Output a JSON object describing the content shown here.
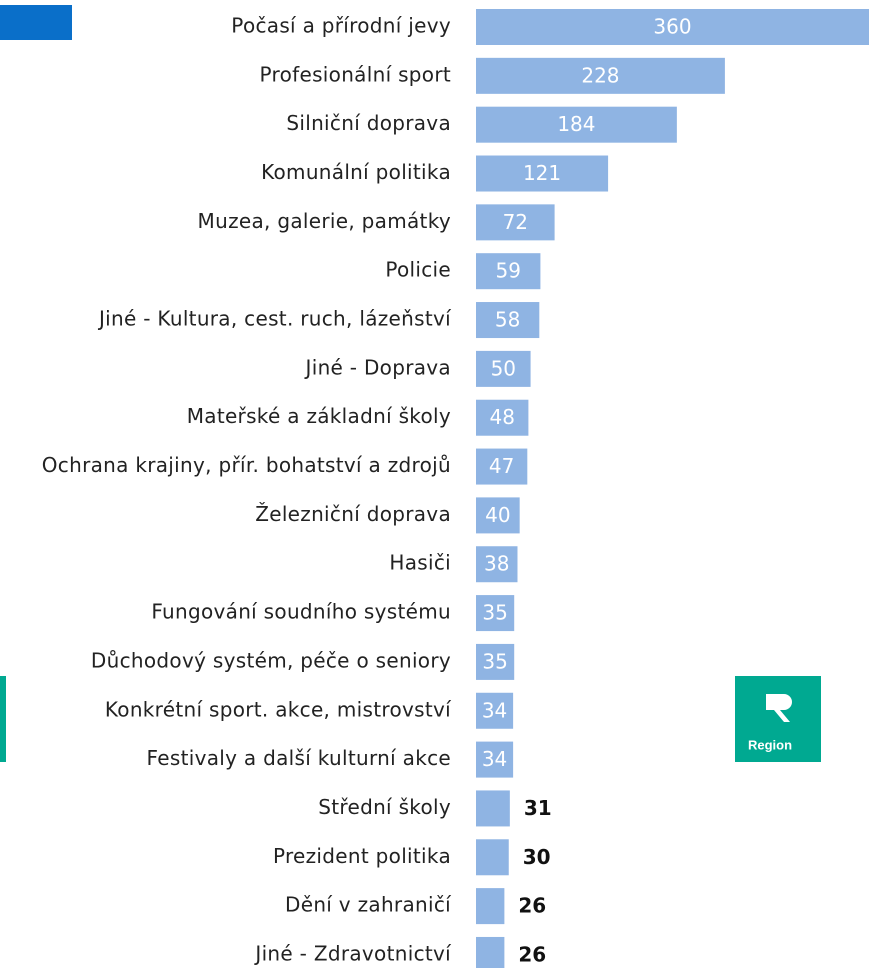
{
  "chart_data": {
    "type": "bar",
    "orientation": "horizontal",
    "categories": [
      "Počasí a přírodní jevy",
      "Profesionální sport",
      "Silniční doprava",
      "Komunální politika",
      "Muzea, galerie, památky",
      "Policie",
      "Jiné - Kultura, cest.  ruch, lázeňství",
      "Jiné - Doprava",
      "Mateřské a základní školy",
      "Ochrana krajiny, přír. bohatství a zdrojů",
      "Železniční doprava",
      "Hasiči",
      "Fungování soudního systému",
      "Důchodový systém, péče o seniory",
      "Konkrétní sport. akce, mistrovství",
      "Festivaly a další kulturní akce",
      "Střední školy",
      "Prezident politika",
      "Dění v zahraničí",
      "Jiné - Zdravotnictví"
    ],
    "values": [
      360,
      228,
      184,
      121,
      72,
      59,
      58,
      50,
      48,
      47,
      40,
      38,
      35,
      35,
      34,
      34,
      31,
      30,
      26,
      26
    ],
    "color": "#8fb4e3",
    "logo_text": "Region"
  }
}
